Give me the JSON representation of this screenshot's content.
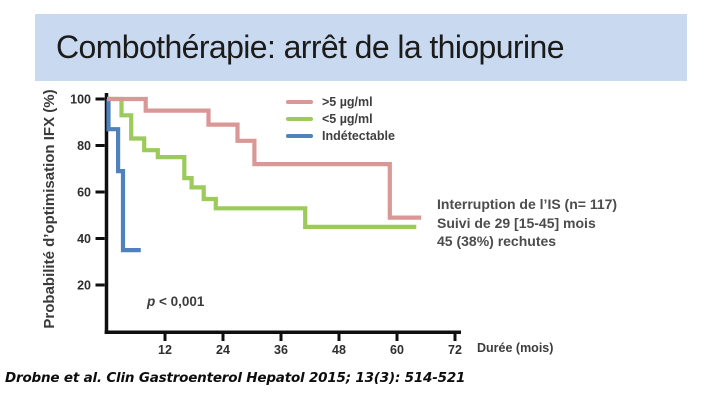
{
  "title": "Combothérapie: arrêt de la thiopurine",
  "p_label": {
    "symbol": "p",
    "rest": " < 0,001"
  },
  "annotation": {
    "line1": "Interruption de l’IS (n= 117)",
    "line2": "Suivi de 29 [15-45] mois",
    "line3": "45 (38%) rechutes"
  },
  "citation": "Drobne et al. Clin Gastroenterol Hepatol 2015; 13(3): 514-521",
  "chart_data": {
    "type": "line",
    "step": true,
    "xlabel": "Durée (mois)",
    "ylabel": "Probabilité d’optimisation IFX (%)",
    "xlim": [
      0,
      73
    ],
    "ylim": [
      0,
      100
    ],
    "x_ticks": [
      12,
      24,
      36,
      48,
      60,
      72
    ],
    "y_ticks": [
      100,
      80,
      60,
      40,
      20
    ],
    "grid": false,
    "legend_position": "top-center-inside",
    "axis_color": "#0f0f0f",
    "series": [
      {
        "name": ">5 µg/ml",
        "color": "#d99795",
        "points": [
          [
            0,
            100
          ],
          [
            8,
            100
          ],
          [
            8,
            95
          ],
          [
            21,
            95
          ],
          [
            21,
            89
          ],
          [
            27,
            89
          ],
          [
            27,
            82
          ],
          [
            30.5,
            82
          ],
          [
            30.5,
            72
          ],
          [
            58.5,
            72
          ],
          [
            58.5,
            49
          ],
          [
            65,
            49
          ]
        ]
      },
      {
        "name": "<5 µg/ml",
        "color": "#9cca5b",
        "points": [
          [
            0,
            100
          ],
          [
            3,
            100
          ],
          [
            3,
            93
          ],
          [
            5,
            93
          ],
          [
            5,
            83
          ],
          [
            7.7,
            83
          ],
          [
            7.7,
            78
          ],
          [
            10.5,
            78
          ],
          [
            10.5,
            75
          ],
          [
            16,
            75
          ],
          [
            16,
            66
          ],
          [
            17.5,
            66
          ],
          [
            17.5,
            62
          ],
          [
            20,
            62
          ],
          [
            20,
            57
          ],
          [
            22.5,
            57
          ],
          [
            22.5,
            53
          ],
          [
            41,
            53
          ],
          [
            41,
            45
          ],
          [
            64,
            45
          ]
        ]
      },
      {
        "name": "Indétectable",
        "color": "#4f81bd",
        "points": [
          [
            0,
            100
          ],
          [
            0.3,
            100
          ],
          [
            0.3,
            87
          ],
          [
            2.3,
            87
          ],
          [
            2.3,
            69
          ],
          [
            3.3,
            69
          ],
          [
            3.3,
            35
          ],
          [
            7,
            35
          ]
        ]
      }
    ],
    "p_value": "p < 0,001",
    "annotation_text": [
      "Interruption de l’IS (n= 117)",
      "Suivi de 29 [15-45] mois",
      "45 (38%) rechutes"
    ]
  }
}
